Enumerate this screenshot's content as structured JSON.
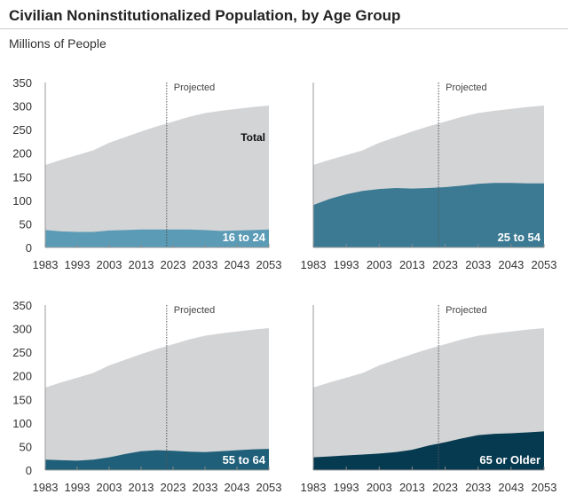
{
  "title": "Civilian Noninstitutionalized Population, by Age Group",
  "subtitle": "Millions of People",
  "colors": {
    "total": "#d3d4d6",
    "16 to 24": "#5b9bb6",
    "25 to 54": "#3c7a93",
    "55 to 64": "#1f5f79",
    "65 or Older": "#063a50"
  },
  "chart_data": [
    {
      "type": "area",
      "series_label": "16 to 24",
      "total_label": "Total",
      "projected_label": "Projected",
      "projected_start": 2021,
      "x": [
        1983,
        1988,
        1993,
        1998,
        2003,
        2008,
        2013,
        2018,
        2023,
        2028,
        2033,
        2038,
        2043,
        2048,
        2053
      ],
      "total": [
        175,
        186,
        196,
        206,
        222,
        234,
        246,
        257,
        267,
        277,
        285,
        290,
        294,
        298,
        301
      ],
      "values": [
        37,
        34,
        33,
        33,
        36,
        37,
        38,
        38,
        38,
        38,
        37,
        35,
        36,
        37,
        38
      ],
      "xticks": [
        "1983",
        "1993",
        "2003",
        "2013",
        "2023",
        "2033",
        "2043",
        "2053"
      ],
      "yticks": [
        "0",
        "50",
        "100",
        "150",
        "200",
        "250",
        "300",
        "350"
      ],
      "ylim": [
        0,
        350
      ]
    },
    {
      "type": "area",
      "series_label": "25 to 54",
      "projected_label": "Projected",
      "projected_start": 2021,
      "x": [
        1983,
        1988,
        1993,
        1998,
        2003,
        2008,
        2013,
        2018,
        2023,
        2028,
        2033,
        2038,
        2043,
        2048,
        2053
      ],
      "total": [
        175,
        186,
        196,
        206,
        222,
        234,
        246,
        257,
        267,
        277,
        285,
        290,
        294,
        298,
        301
      ],
      "values": [
        90,
        103,
        113,
        120,
        124,
        126,
        125,
        126,
        128,
        131,
        135,
        137,
        137,
        136,
        136
      ],
      "xticks": [
        "1983",
        "1993",
        "2003",
        "2013",
        "2023",
        "2033",
        "2043",
        "2053"
      ],
      "ylim": [
        0,
        350
      ]
    },
    {
      "type": "area",
      "series_label": "55 to 64",
      "projected_label": "Projected",
      "projected_start": 2021,
      "x": [
        1983,
        1988,
        1993,
        1998,
        2003,
        2008,
        2013,
        2018,
        2023,
        2028,
        2033,
        2038,
        2043,
        2048,
        2053
      ],
      "total": [
        175,
        186,
        196,
        206,
        222,
        234,
        246,
        257,
        267,
        277,
        285,
        290,
        294,
        298,
        301
      ],
      "values": [
        22,
        21,
        20,
        22,
        27,
        34,
        40,
        42,
        41,
        39,
        38,
        40,
        42,
        44,
        45
      ],
      "xticks": [
        "1983",
        "1993",
        "2003",
        "2013",
        "2023",
        "2033",
        "2043",
        "2053"
      ],
      "yticks": [
        "0",
        "50",
        "100",
        "150",
        "200",
        "250",
        "300",
        "350"
      ],
      "ylim": [
        0,
        350
      ]
    },
    {
      "type": "area",
      "series_label": "65 or Older",
      "projected_label": "Projected",
      "projected_start": 2021,
      "x": [
        1983,
        1988,
        1993,
        1998,
        2003,
        2008,
        2013,
        2018,
        2023,
        2028,
        2033,
        2038,
        2043,
        2048,
        2053
      ],
      "total": [
        175,
        186,
        196,
        206,
        222,
        234,
        246,
        257,
        267,
        277,
        285,
        290,
        294,
        298,
        301
      ],
      "values": [
        27,
        29,
        31,
        33,
        35,
        38,
        43,
        52,
        59,
        67,
        74,
        77,
        78,
        80,
        82
      ],
      "xticks": [
        "1983",
        "1993",
        "2003",
        "2013",
        "2023",
        "2033",
        "2043",
        "2053"
      ],
      "ylim": [
        0,
        350
      ]
    }
  ]
}
